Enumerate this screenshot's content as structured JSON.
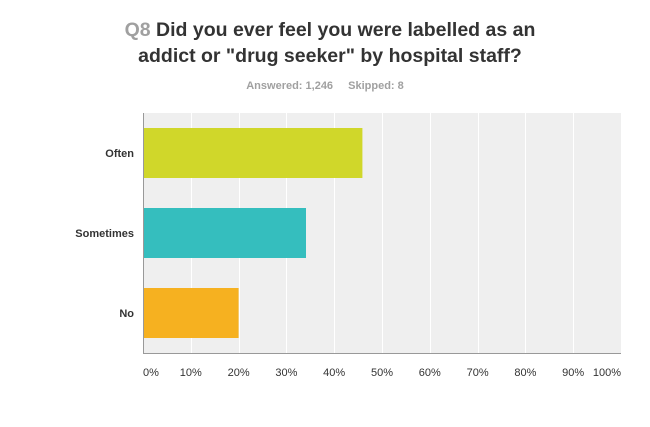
{
  "question": {
    "number": "Q8",
    "line1": "Did you ever feel you were labelled as an",
    "line2": "addict or \"drug seeker\" by hospital staff?"
  },
  "stats": {
    "answered": "Answered: 1,246",
    "skipped": "Skipped: 8"
  },
  "colors": {
    "plot_background": "#efefef",
    "grid": "#ffffff",
    "axis": "#999999",
    "bars": [
      "#d0d72a",
      "#35bebe",
      "#f6b120"
    ]
  },
  "chart_data": {
    "type": "bar",
    "orientation": "horizontal",
    "categories": [
      "Often",
      "Sometimes",
      "No"
    ],
    "values": [
      45.9,
      34.1,
      20.0
    ],
    "xlim": [
      0,
      100
    ],
    "xticks": [
      "0%",
      "10%",
      "20%",
      "30%",
      "40%",
      "50%",
      "60%",
      "70%",
      "80%",
      "90%",
      "100%"
    ],
    "grid": true
  }
}
